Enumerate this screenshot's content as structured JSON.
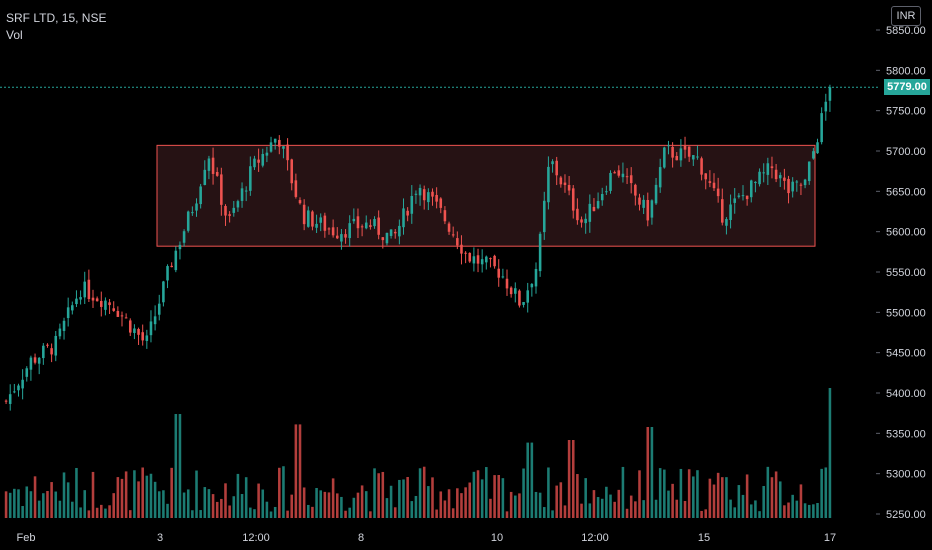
{
  "legend": {
    "symbol_line": "SRF LTD, 15, NSE",
    "volume_label": "Vol"
  },
  "currency": "INR",
  "last_price": "5779.00",
  "colors": {
    "up": "#26a69a",
    "down": "#ef5350",
    "zone_fill": "#2d1518",
    "zone_stroke": "#ef5350",
    "background": "#000000",
    "axis_text": "#d1d4dc"
  },
  "chart_data": {
    "type": "candlestick",
    "title": "",
    "y_axis": {
      "ticks": [
        5250,
        5300,
        5350,
        5400,
        5450,
        5500,
        5550,
        5600,
        5650,
        5700,
        5750,
        5800,
        5850
      ],
      "tick_labels": [
        "5250.00",
        "5300.00",
        "5350.00",
        "5400.00",
        "5450.00",
        "5500.00",
        "5550.00",
        "5600.00",
        "5650.00",
        "5700.00",
        "5750.00",
        "5800.00",
        "5850.00"
      ],
      "range": [
        5238,
        5880
      ]
    },
    "x_axis": {
      "labels": [
        "Feb",
        "3",
        "12:00",
        "8",
        "10",
        "12:00",
        "15",
        "17"
      ]
    },
    "last_price_line": 5779,
    "range_box": {
      "low": 5582,
      "high": 5707,
      "from_label": "3",
      "to_label": "17"
    },
    "series_keypoints": [
      {
        "x": 0,
        "close": 5390
      },
      {
        "x": 0.03,
        "close": 5440
      },
      {
        "x": 0.06,
        "close": 5460
      },
      {
        "x": 0.09,
        "close": 5530
      },
      {
        "x": 0.13,
        "close": 5510
      },
      {
        "x": 0.17,
        "close": 5460
      },
      {
        "x": 0.2,
        "close": 5560
      },
      {
        "x": 0.23,
        "close": 5640
      },
      {
        "x": 0.245,
        "close": 5700
      },
      {
        "x": 0.27,
        "close": 5610
      },
      {
        "x": 0.3,
        "close": 5680
      },
      {
        "x": 0.33,
        "close": 5720
      },
      {
        "x": 0.36,
        "close": 5620
      },
      {
        "x": 0.4,
        "close": 5600
      },
      {
        "x": 0.44,
        "close": 5610
      },
      {
        "x": 0.47,
        "close": 5590
      },
      {
        "x": 0.5,
        "close": 5660
      },
      {
        "x": 0.53,
        "close": 5620
      },
      {
        "x": 0.56,
        "close": 5570
      },
      {
        "x": 0.6,
        "close": 5550
      },
      {
        "x": 0.625,
        "close": 5510
      },
      {
        "x": 0.645,
        "close": 5560
      },
      {
        "x": 0.66,
        "close": 5690
      },
      {
        "x": 0.7,
        "close": 5610
      },
      {
        "x": 0.74,
        "close": 5680
      },
      {
        "x": 0.78,
        "close": 5620
      },
      {
        "x": 0.8,
        "close": 5700
      },
      {
        "x": 0.84,
        "close": 5690
      },
      {
        "x": 0.87,
        "close": 5620
      },
      {
        "x": 0.9,
        "close": 5650
      },
      {
        "x": 0.93,
        "close": 5680
      },
      {
        "x": 0.95,
        "close": 5650
      },
      {
        "x": 0.97,
        "close": 5660
      },
      {
        "x": 1,
        "close": 5779
      }
    ],
    "volume": {
      "typical_range": [
        5,
        40
      ],
      "spikes": [
        {
          "x": 0.21,
          "value": 80
        },
        {
          "x": 0.355,
          "value": 72
        },
        {
          "x": 0.635,
          "value": 58
        },
        {
          "x": 0.685,
          "value": 60
        },
        {
          "x": 0.78,
          "value": 70
        },
        {
          "x": 1,
          "value": 100
        }
      ]
    }
  }
}
